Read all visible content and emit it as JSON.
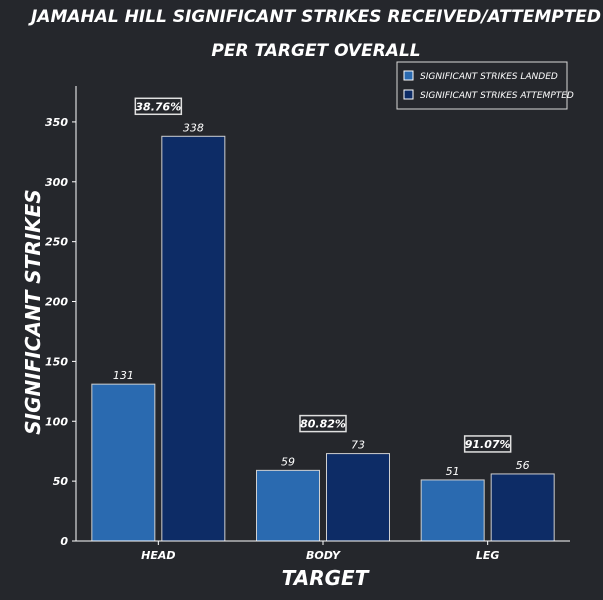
{
  "chart_data": {
    "type": "bar",
    "title": "Jamahal Hill Significant Strikes Received/Attempted",
    "subtitle": "per Target Overall",
    "xlabel": "Target",
    "ylabel": "Significant Strikes",
    "categories": [
      "Head",
      "Body",
      "Leg"
    ],
    "series": [
      {
        "name": "Significant Strikes Landed",
        "values": [
          131,
          59,
          51
        ],
        "color": "#2a6ab0"
      },
      {
        "name": "Significant Strikes Attempted",
        "values": [
          338,
          73,
          56
        ],
        "color": "#0d2c66"
      }
    ],
    "percent_labels": [
      "38.76%",
      "80.82%",
      "91.07%"
    ],
    "ylim": [
      0,
      380
    ],
    "yticks": [
      0,
      50,
      100,
      150,
      200,
      250,
      300,
      350
    ],
    "legend_position": "top-right",
    "grid": false
  }
}
